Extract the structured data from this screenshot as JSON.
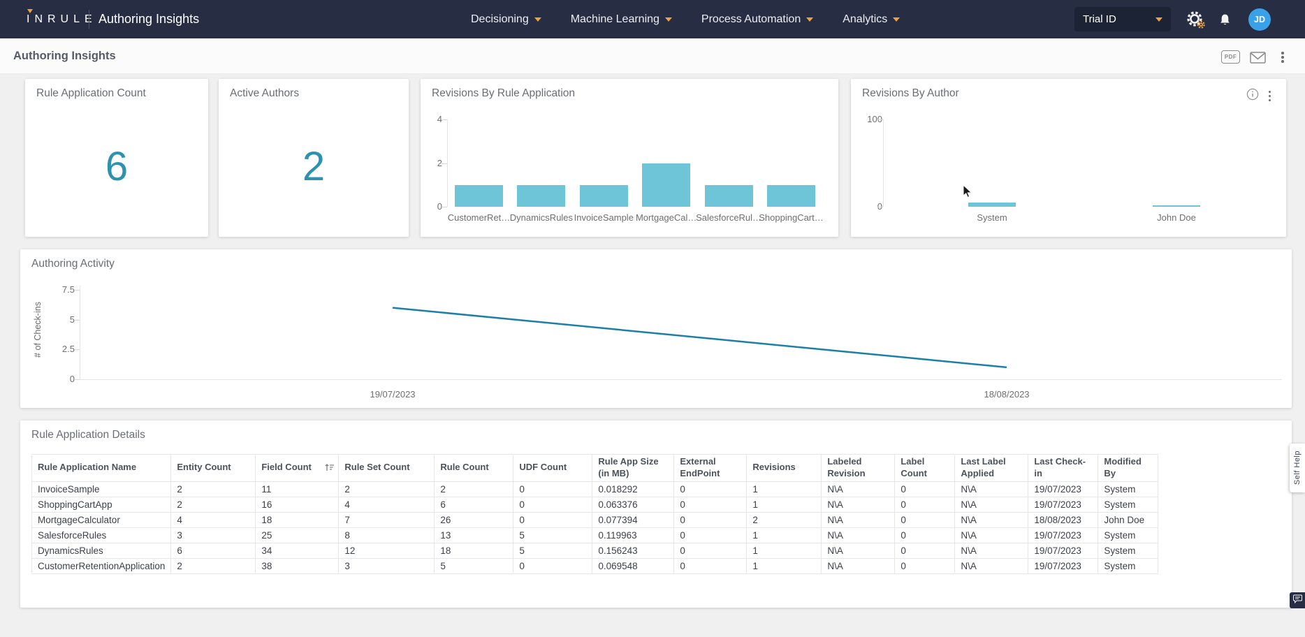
{
  "navbar": {
    "logo": "INRULE",
    "app_title": "Authoring Insights",
    "menus": [
      {
        "label": "Decisioning"
      },
      {
        "label": "Machine Learning"
      },
      {
        "label": "Process Automation"
      },
      {
        "label": "Analytics"
      }
    ],
    "tenant": {
      "selected": "Trial ID"
    },
    "avatar": "JD"
  },
  "toolbar": {
    "breadcrumb": "Authoring Insights",
    "pdf_label": "PDF"
  },
  "kpi_cards": [
    {
      "title": "Rule Application Count",
      "value": "6"
    },
    {
      "title": "Active Authors",
      "value": "2"
    }
  ],
  "chart_data": [
    {
      "type": "bar",
      "title": "Revisions By Rule Application",
      "categories": [
        "CustomerRet…",
        "DynamicsRules",
        "InvoiceSample",
        "MortgageCal…",
        "SalesforceRul…",
        "ShoppingCart…"
      ],
      "values": [
        1,
        1,
        1,
        2,
        1,
        1
      ],
      "yticks": [
        0,
        2,
        4
      ],
      "ylim": [
        0,
        4
      ],
      "bar_color": "#6ec5d8",
      "legend": "none",
      "grid": "off"
    },
    {
      "type": "bar",
      "title": "Revisions By Author",
      "categories": [
        "System",
        "John Doe"
      ],
      "values": [
        5,
        2
      ],
      "yticks": [
        0,
        100
      ],
      "ylim": [
        0,
        100
      ],
      "bar_color": "#6ec5d8",
      "legend": "none",
      "grid": "off"
    },
    {
      "type": "line",
      "title": "Authoring Activity",
      "ylabel": "# of Check-ins",
      "x": [
        "19/07/2023",
        "18/08/2023"
      ],
      "values": [
        6,
        1
      ],
      "yticks": [
        0,
        2.5,
        5,
        7.5
      ],
      "ylim": [
        0,
        7.5
      ],
      "line_color": "#1d7fa8",
      "legend": "none",
      "grid": "off"
    }
  ],
  "table": {
    "title": "Rule Application Details",
    "columns": [
      "Rule Application Name",
      "Entity Count",
      "Field Count",
      "Rule Set Count",
      "Rule Count",
      "UDF Count",
      "Rule App Size (in MB)",
      "External EndPoint",
      "Revisions",
      "Labeled Revision",
      "Label Count",
      "Last Label Applied",
      "Last Check-in",
      "Modified By"
    ],
    "rows": [
      [
        "InvoiceSample",
        "2",
        "11",
        "2",
        "2",
        "0",
        "0.018292",
        "0",
        "1",
        "N\\A",
        "0",
        "N\\A",
        "19/07/2023",
        "System"
      ],
      [
        "ShoppingCartApp",
        "2",
        "16",
        "4",
        "6",
        "0",
        "0.063376",
        "0",
        "1",
        "N\\A",
        "0",
        "N\\A",
        "19/07/2023",
        "System"
      ],
      [
        "MortgageCalculator",
        "4",
        "18",
        "7",
        "26",
        "0",
        "0.077394",
        "0",
        "2",
        "N\\A",
        "0",
        "N\\A",
        "18/08/2023",
        "John Doe"
      ],
      [
        "SalesforceRules",
        "3",
        "25",
        "8",
        "13",
        "5",
        "0.119963",
        "0",
        "1",
        "N\\A",
        "0",
        "N\\A",
        "19/07/2023",
        "System"
      ],
      [
        "DynamicsRules",
        "6",
        "34",
        "12",
        "18",
        "5",
        "0.156243",
        "0",
        "1",
        "N\\A",
        "0",
        "N\\A",
        "19/07/2023",
        "System"
      ],
      [
        "CustomerRetentionApplication",
        "2",
        "38",
        "3",
        "5",
        "0",
        "0.069548",
        "0",
        "1",
        "N\\A",
        "0",
        "N\\A",
        "19/07/2023",
        "System"
      ]
    ]
  },
  "side": {
    "self_help": "Self Help"
  },
  "colors": {
    "navbar_bg": "#272e43",
    "accent_orange": "#f0a23c",
    "kpi_teal": "#2d92ad",
    "avatar_blue": "#3aa0e8"
  }
}
